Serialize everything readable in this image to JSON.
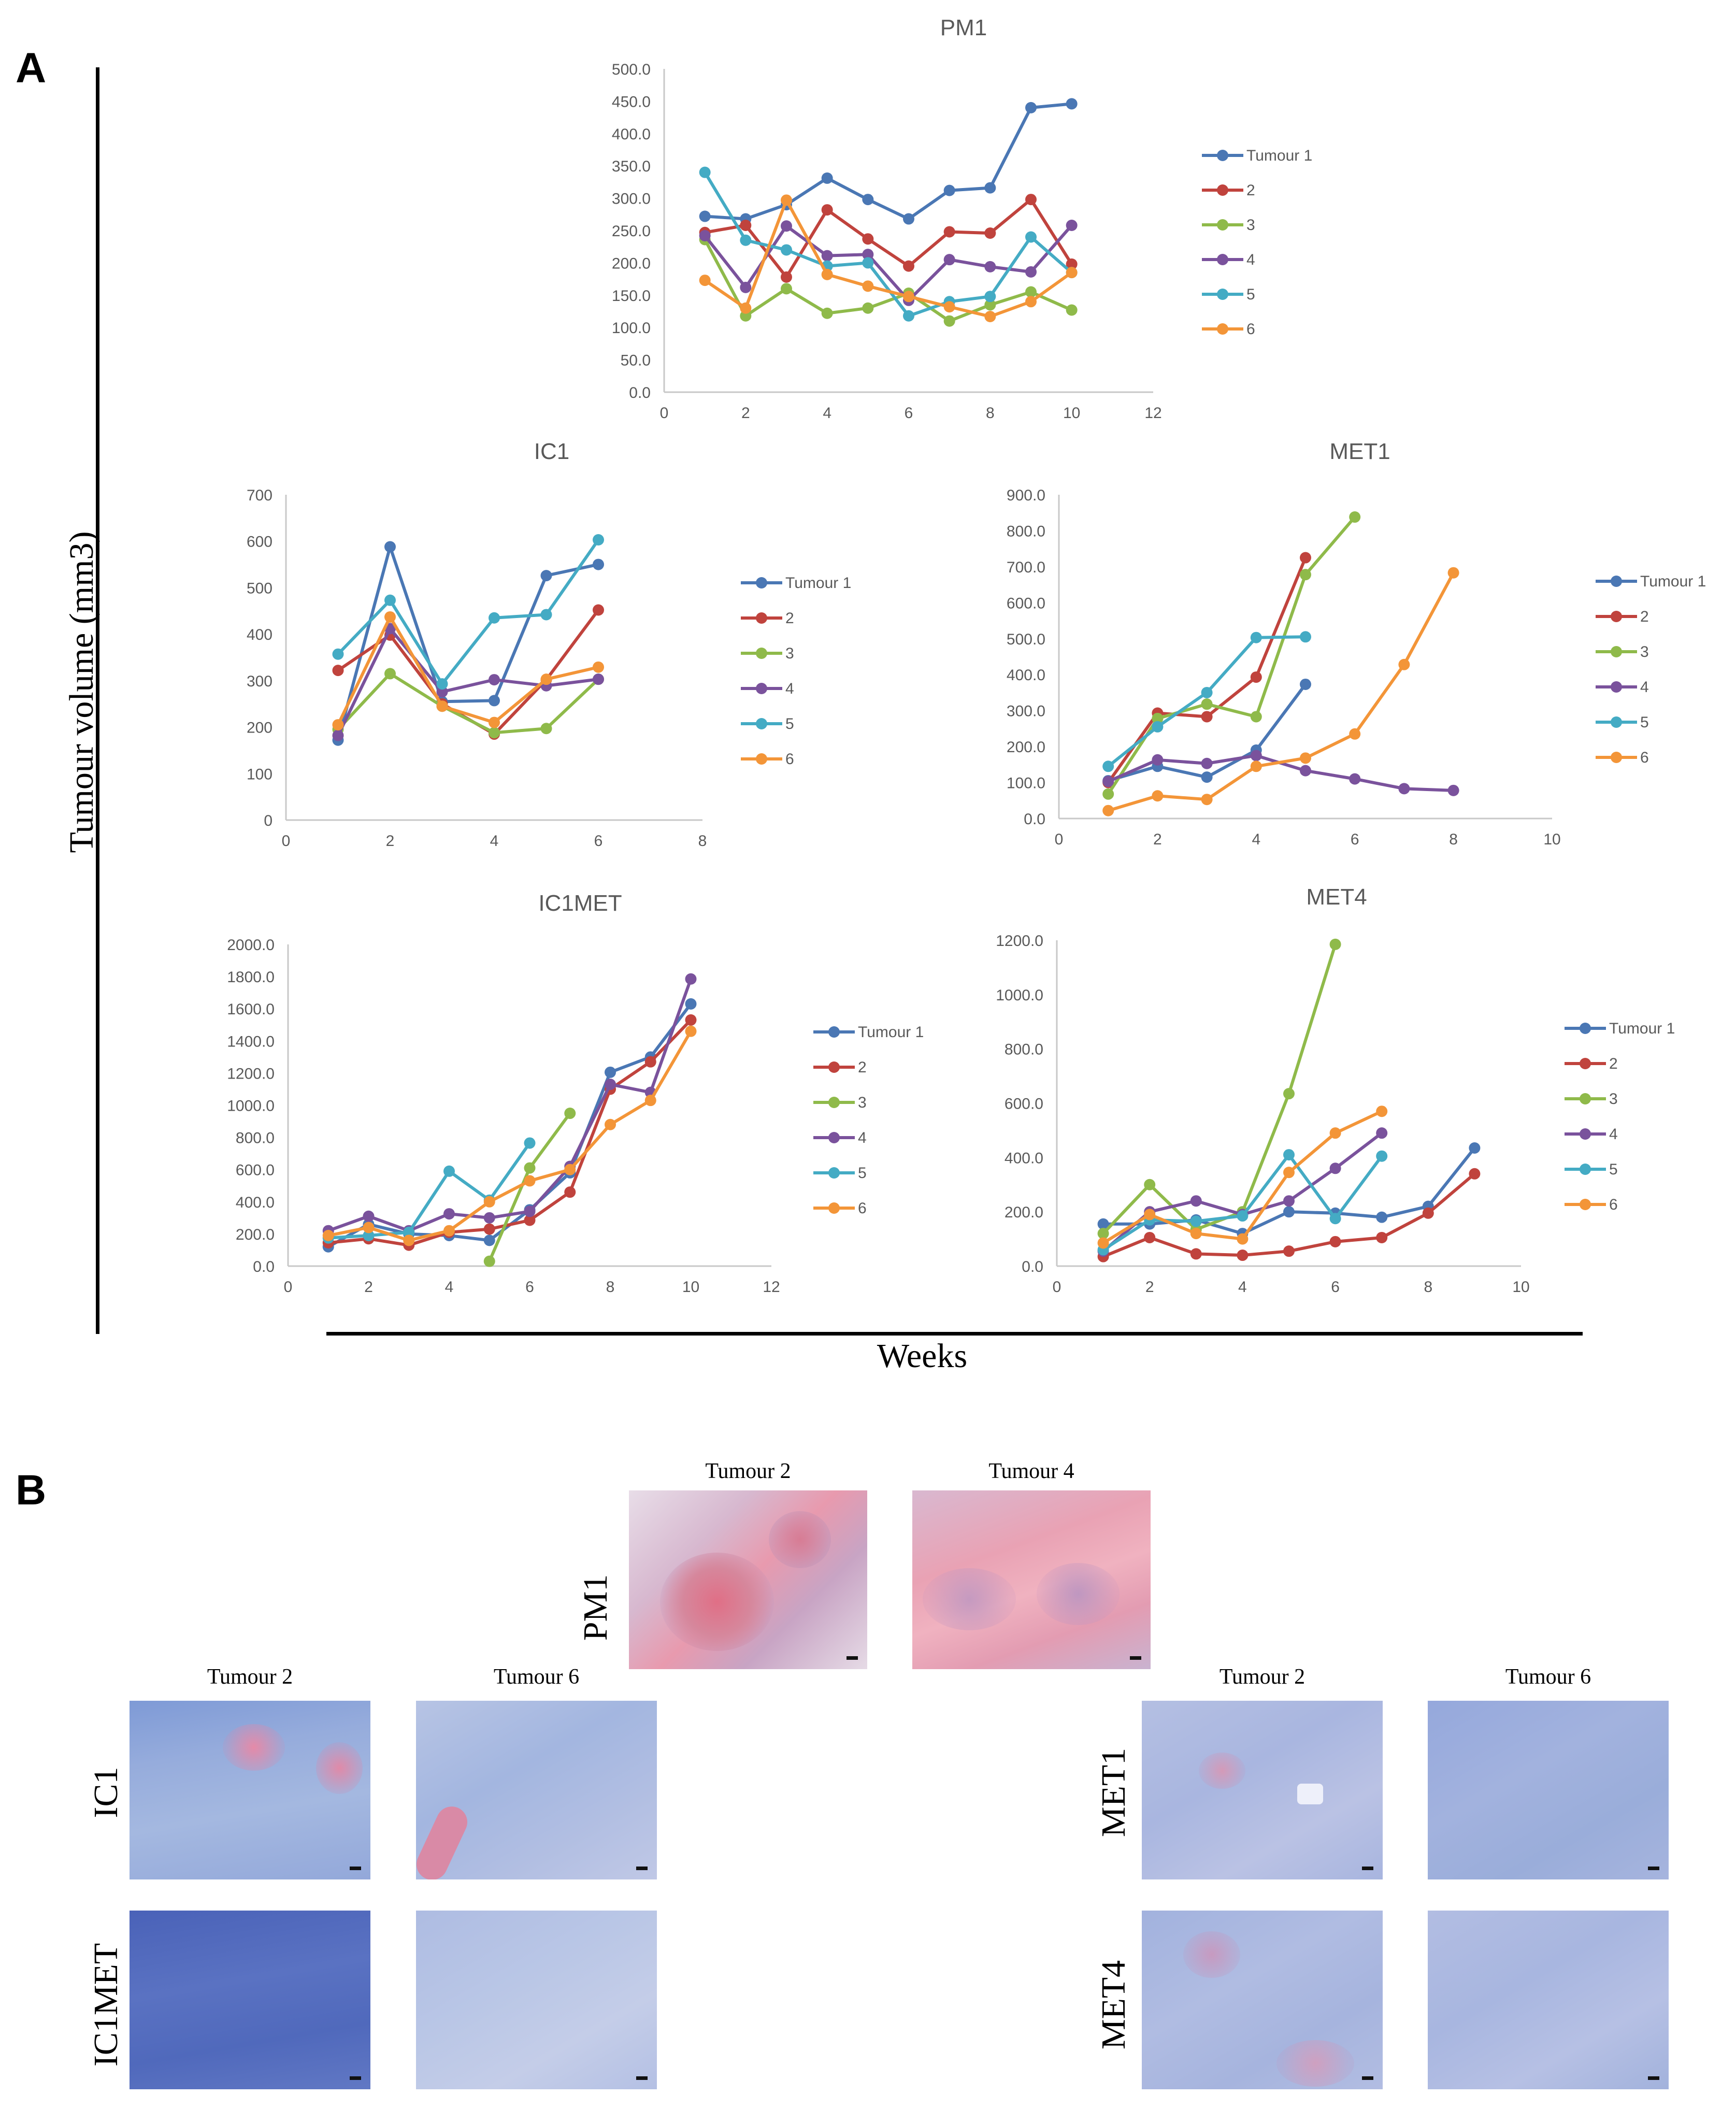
{
  "figure": {
    "panel_a_label": "A",
    "panel_b_label": "B",
    "y_axis_title": "Tumour volume (mm3)",
    "x_axis_title": "Weeks"
  },
  "colors": {
    "series": [
      "#4a77b4",
      "#c0433d",
      "#8fba4a",
      "#7a529c",
      "#44abc4",
      "#f39538"
    ],
    "axis": "#c8c8c8",
    "tick_text": "#595959",
    "title_text": "#595959"
  },
  "chart_data": [
    {
      "id": "pm1",
      "type": "line",
      "title": "PM1",
      "xlim": [
        0,
        12
      ],
      "xticks": [
        0,
        2,
        4,
        6,
        8,
        10,
        12
      ],
      "ylim": [
        0,
        500
      ],
      "yticks": [
        0,
        50,
        100,
        150,
        200,
        250,
        300,
        350,
        400,
        450,
        500
      ],
      "ytick_decimals": 1,
      "xlabel": "",
      "ylabel": "",
      "legend_position": "right",
      "series": [
        {
          "name": "Tumour 1",
          "x": [
            1,
            2,
            3,
            4,
            5,
            6,
            7,
            8,
            9,
            10
          ],
          "values": [
            272,
            268,
            290,
            331,
            298,
            268,
            312,
            316,
            440,
            446
          ]
        },
        {
          "name": "2",
          "x": [
            1,
            2,
            3,
            4,
            5,
            6,
            7,
            8,
            9,
            10
          ],
          "values": [
            247,
            258,
            178,
            282,
            237,
            195,
            248,
            246,
            298,
            198
          ]
        },
        {
          "name": "3",
          "x": [
            1,
            2,
            3,
            4,
            5,
            6,
            7,
            8,
            9,
            10
          ],
          "values": [
            236,
            118,
            160,
            122,
            130,
            153,
            110,
            135,
            155,
            127
          ]
        },
        {
          "name": "4",
          "x": [
            1,
            2,
            3,
            4,
            5,
            6,
            7,
            8,
            9,
            10
          ],
          "values": [
            242,
            162,
            257,
            211,
            213,
            142,
            205,
            194,
            186,
            258
          ]
        },
        {
          "name": "5",
          "x": [
            1,
            2,
            3,
            4,
            5,
            6,
            7,
            8,
            9,
            10
          ],
          "values": [
            340,
            235,
            220,
            195,
            200,
            118,
            140,
            148,
            240,
            185
          ]
        },
        {
          "name": "6",
          "x": [
            1,
            2,
            3,
            4,
            5,
            6,
            7,
            8,
            9,
            10
          ],
          "values": [
            173,
            130,
            297,
            182,
            164,
            148,
            132,
            117,
            140,
            185
          ]
        }
      ]
    },
    {
      "id": "ic1",
      "type": "line",
      "title": "IC1",
      "xlim": [
        0,
        8
      ],
      "xticks": [
        0,
        2,
        4,
        6,
        8
      ],
      "ylim": [
        0,
        700
      ],
      "yticks": [
        0,
        100,
        200,
        300,
        400,
        500,
        600,
        700
      ],
      "ytick_decimals": 0,
      "xlabel": "",
      "ylabel": "",
      "legend_position": "right",
      "series": [
        {
          "name": "Tumour 1",
          "x": [
            1,
            2,
            3,
            4,
            5,
            6
          ],
          "values": [
            172,
            588,
            255,
            257,
            526,
            550
          ]
        },
        {
          "name": "2",
          "x": [
            1,
            2,
            3,
            4,
            5,
            6
          ],
          "values": [
            322,
            398,
            250,
            185,
            302,
            452
          ]
        },
        {
          "name": "3",
          "x": [
            1,
            2,
            3,
            4,
            5,
            6
          ],
          "values": [
            195,
            315,
            245,
            188,
            197,
            303
          ]
        },
        {
          "name": "4",
          "x": [
            1,
            2,
            3,
            4,
            5,
            6
          ],
          "values": [
            182,
            412,
            276,
            302,
            289,
            303
          ]
        },
        {
          "name": "5",
          "x": [
            1,
            2,
            3,
            4,
            5,
            6
          ],
          "values": [
            357,
            473,
            293,
            435,
            442,
            603
          ]
        },
        {
          "name": "6",
          "x": [
            1,
            2,
            3,
            4,
            5,
            6
          ],
          "values": [
            205,
            437,
            245,
            210,
            303,
            329
          ]
        }
      ]
    },
    {
      "id": "met1",
      "type": "line",
      "title": "MET1",
      "xlim": [
        0,
        10
      ],
      "xticks": [
        0,
        2,
        4,
        6,
        8,
        10
      ],
      "ylim": [
        0,
        900
      ],
      "yticks": [
        0,
        100,
        200,
        300,
        400,
        500,
        600,
        700,
        800,
        900
      ],
      "ytick_decimals": 1,
      "xlabel": "",
      "ylabel": "",
      "legend_position": "right",
      "series": [
        {
          "name": "Tumour 1",
          "x": [
            1,
            2,
            3,
            4,
            5
          ],
          "values": [
            105,
            145,
            115,
            190,
            373
          ]
        },
        {
          "name": "2",
          "x": [
            1,
            2,
            3,
            4,
            5
          ],
          "values": [
            100,
            293,
            283,
            393,
            725
          ]
        },
        {
          "name": "3",
          "x": [
            1,
            2,
            3,
            4,
            5,
            6
          ],
          "values": [
            68,
            278,
            318,
            283,
            678,
            838
          ]
        },
        {
          "name": "4",
          "x": [
            1,
            2,
            3,
            4,
            5,
            6,
            7,
            8
          ],
          "values": [
            103,
            163,
            153,
            175,
            133,
            110,
            83,
            78
          ]
        },
        {
          "name": "5",
          "x": [
            1,
            2,
            3,
            4,
            5
          ],
          "values": [
            145,
            255,
            350,
            503,
            505
          ]
        },
        {
          "name": "6",
          "x": [
            1,
            2,
            3,
            4,
            5,
            6,
            7,
            8
          ],
          "values": [
            22,
            63,
            53,
            145,
            168,
            235,
            428,
            683
          ]
        }
      ]
    },
    {
      "id": "ic1met",
      "type": "line",
      "title": "IC1MET",
      "xlim": [
        0,
        12
      ],
      "xticks": [
        0,
        2,
        4,
        6,
        8,
        10,
        12
      ],
      "ylim": [
        0,
        2000
      ],
      "yticks": [
        0,
        200,
        400,
        600,
        800,
        1000,
        1200,
        1400,
        1600,
        1800,
        2000
      ],
      "ytick_decimals": 1,
      "xlabel": "",
      "ylabel": "",
      "legend_position": "right",
      "series": [
        {
          "name": "Tumour 1",
          "x": [
            1,
            2,
            3,
            4,
            5,
            6,
            7,
            8,
            9,
            10
          ],
          "values": [
            120,
            260,
            200,
            190,
            160,
            350,
            580,
            1205,
            1300,
            1630
          ]
        },
        {
          "name": "2",
          "x": [
            1,
            2,
            3,
            4,
            5,
            6,
            7,
            8,
            9,
            10
          ],
          "values": [
            145,
            170,
            130,
            210,
            230,
            285,
            460,
            1100,
            1270,
            1530
          ]
        },
        {
          "name": "3",
          "x": [
            5,
            6,
            7
          ],
          "values": [
            30,
            610,
            950
          ]
        },
        {
          "name": "4",
          "x": [
            1,
            2,
            3,
            4,
            5,
            6,
            7,
            8,
            9,
            10
          ],
          "values": [
            220,
            310,
            220,
            325,
            300,
            340,
            620,
            1130,
            1080,
            1785
          ]
        },
        {
          "name": "5",
          "x": [
            1,
            2,
            3,
            4,
            5,
            6
          ],
          "values": [
            175,
            190,
            210,
            590,
            410,
            765
          ]
        },
        {
          "name": "6",
          "x": [
            1,
            2,
            3,
            4,
            5,
            6,
            7,
            8,
            9,
            10
          ],
          "values": [
            190,
            240,
            160,
            220,
            400,
            530,
            600,
            880,
            1030,
            1460
          ]
        }
      ]
    },
    {
      "id": "met4",
      "type": "line",
      "title": "MET4",
      "xlim": [
        0,
        10
      ],
      "xticks": [
        0,
        2,
        4,
        6,
        8,
        10
      ],
      "ylim": [
        0,
        1200
      ],
      "yticks": [
        0,
        200,
        400,
        600,
        800,
        1000,
        1200
      ],
      "ytick_decimals": 1,
      "xlabel": "",
      "ylabel": "",
      "legend_position": "right",
      "series": [
        {
          "name": "Tumour 1",
          "x": [
            1,
            2,
            3,
            4,
            5,
            6,
            7,
            8,
            9
          ],
          "values": [
            155,
            155,
            170,
            120,
            200,
            195,
            180,
            220,
            435
          ]
        },
        {
          "name": "2",
          "x": [
            1,
            2,
            3,
            4,
            5,
            6,
            7,
            8,
            9
          ],
          "values": [
            35,
            105,
            45,
            40,
            55,
            90,
            105,
            195,
            340
          ]
        },
        {
          "name": "3",
          "x": [
            1,
            2,
            3,
            4,
            5,
            6
          ],
          "values": [
            120,
            300,
            135,
            200,
            635,
            1185
          ]
        },
        {
          "name": "4",
          "x": [
            1,
            2,
            3,
            4,
            5,
            6,
            7
          ],
          "values": [
            55,
            200,
            240,
            190,
            240,
            360,
            490
          ]
        },
        {
          "name": "5",
          "x": [
            1,
            2,
            3,
            4,
            5,
            6,
            7
          ],
          "values": [
            60,
            170,
            165,
            185,
            410,
            175,
            405
          ]
        },
        {
          "name": "6",
          "x": [
            1,
            2,
            3,
            4,
            5,
            6,
            7
          ],
          "values": [
            85,
            190,
            120,
            100,
            345,
            490,
            570
          ]
        }
      ]
    }
  ],
  "histology": {
    "pm1": {
      "row_label": "PM1",
      "col1_label": "Tumour 2",
      "col2_label": "Tumour 4"
    },
    "ic1_ic1met": {
      "col1_label": "Tumour 2",
      "col2_label": "Tumour 6",
      "row1_label": "IC1",
      "row2_label": "IC1MET"
    },
    "met1_met4": {
      "col1_label": "Tumour 2",
      "col2_label": "Tumour 6",
      "row1_label": "MET1",
      "row2_label": "MET4"
    }
  }
}
